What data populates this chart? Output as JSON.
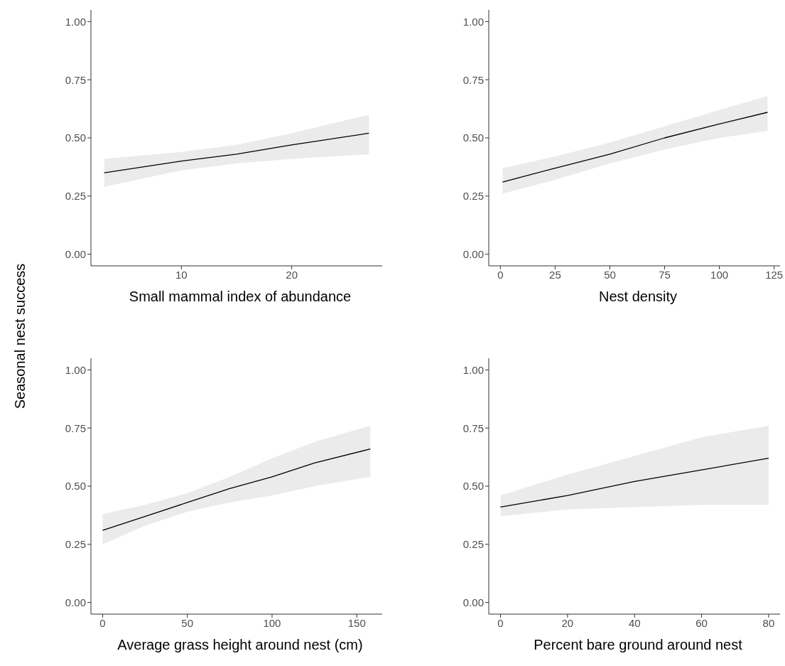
{
  "chart_data": [
    {
      "type": "line",
      "xlabel": "Small mammal index of abundance",
      "ylabel": "Seasonal nest success",
      "x": [
        3,
        10,
        15,
        20,
        27
      ],
      "xlim": [
        1.8,
        28.2
      ],
      "xticks": [
        10,
        20
      ],
      "ylim": [
        -0.05,
        1.05
      ],
      "yticks": [
        {
          "value": 0,
          "label": "0.00"
        },
        {
          "value": 0.25,
          "label": "0.25"
        },
        {
          "value": 0.5,
          "label": "0.50"
        },
        {
          "value": 0.75,
          "label": "0.75"
        },
        {
          "value": 1,
          "label": "1.00"
        }
      ],
      "series": [
        {
          "color": "#000000",
          "values": [
            0.35,
            0.4,
            0.43,
            0.47,
            0.52
          ],
          "lower": [
            0.29,
            0.36,
            0.39,
            0.41,
            0.43
          ],
          "upper": [
            0.41,
            0.44,
            0.47,
            0.52,
            0.6
          ]
        }
      ]
    },
    {
      "type": "line",
      "xlabel": "Nest density",
      "x": [
        1,
        25,
        50,
        75,
        100,
        122
      ],
      "xlim": [
        -5.3,
        127.7
      ],
      "xticks": [
        0,
        25,
        50,
        75,
        100,
        125
      ],
      "ylim": [
        -0.05,
        1.05
      ],
      "yticks": [
        {
          "value": 0,
          "label": "0.00"
        },
        {
          "value": 0.25,
          "label": "0.25"
        },
        {
          "value": 0.5,
          "label": "0.50"
        },
        {
          "value": 0.75,
          "label": "0.75"
        },
        {
          "value": 1,
          "label": "1.00"
        }
      ],
      "series": [
        {
          "color": "#000000",
          "values": [
            0.31,
            0.37,
            0.43,
            0.5,
            0.56,
            0.61
          ],
          "lower": [
            0.26,
            0.32,
            0.39,
            0.45,
            0.5,
            0.53
          ],
          "upper": [
            0.37,
            0.42,
            0.48,
            0.55,
            0.62,
            0.68
          ]
        }
      ]
    },
    {
      "type": "line",
      "xlabel": "Average grass height around nest (cm)",
      "x": [
        0,
        25,
        50,
        75,
        100,
        125,
        158
      ],
      "xlim": [
        -6.9,
        165
      ],
      "xticks": [
        0,
        50,
        100,
        150
      ],
      "ylim": [
        -0.05,
        1.05
      ],
      "yticks": [
        {
          "value": 0,
          "label": "0.00"
        },
        {
          "value": 0.25,
          "label": "0.25"
        },
        {
          "value": 0.5,
          "label": "0.50"
        },
        {
          "value": 0.75,
          "label": "0.75"
        },
        {
          "value": 1,
          "label": "1.00"
        }
      ],
      "series": [
        {
          "color": "#000000",
          "values": [
            0.31,
            0.37,
            0.43,
            0.49,
            0.54,
            0.6,
            0.66
          ],
          "lower": [
            0.25,
            0.33,
            0.39,
            0.43,
            0.46,
            0.5,
            0.54
          ],
          "upper": [
            0.38,
            0.42,
            0.47,
            0.54,
            0.62,
            0.69,
            0.76
          ]
        }
      ]
    },
    {
      "type": "line",
      "xlabel": "Percent bare ground around nest",
      "x": [
        0,
        20,
        40,
        60,
        80
      ],
      "xlim": [
        -3.5,
        83.4
      ],
      "xticks": [
        0,
        20,
        40,
        60,
        80
      ],
      "ylim": [
        -0.05,
        1.05
      ],
      "yticks": [
        {
          "value": 0,
          "label": "0.00"
        },
        {
          "value": 0.25,
          "label": "0.25"
        },
        {
          "value": 0.5,
          "label": "0.50"
        },
        {
          "value": 0.75,
          "label": "0.75"
        },
        {
          "value": 1,
          "label": "1.00"
        }
      ],
      "series": [
        {
          "color": "#000000",
          "values": [
            0.41,
            0.46,
            0.52,
            0.57,
            0.62
          ],
          "lower": [
            0.37,
            0.4,
            0.41,
            0.42,
            0.42
          ],
          "upper": [
            0.46,
            0.55,
            0.63,
            0.71,
            0.76
          ]
        }
      ]
    }
  ]
}
